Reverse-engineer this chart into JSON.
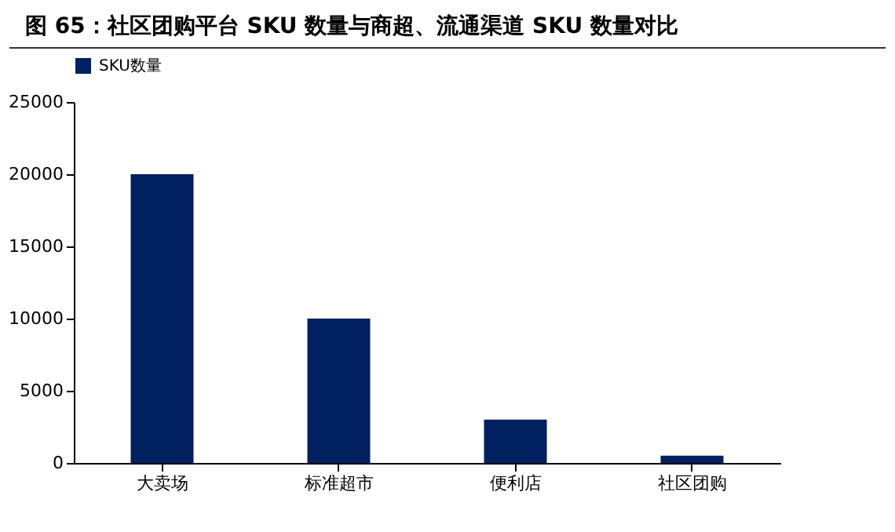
{
  "chart_data": {
    "type": "bar",
    "title": "图 65：社区团购平台 SKU 数量与商超、流通渠道 SKU 数量对比",
    "categories": [
      "大卖场",
      "标准超市",
      "便利店",
      "社区团购"
    ],
    "series": [
      {
        "name": "SKU数量",
        "color": "#002060",
        "values": [
          20000,
          10000,
          3000,
          500
        ]
      }
    ],
    "ylim": [
      0,
      25000
    ],
    "yticks": [
      0,
      5000,
      10000,
      15000,
      20000,
      25000
    ],
    "grid": false,
    "legend": "top"
  }
}
